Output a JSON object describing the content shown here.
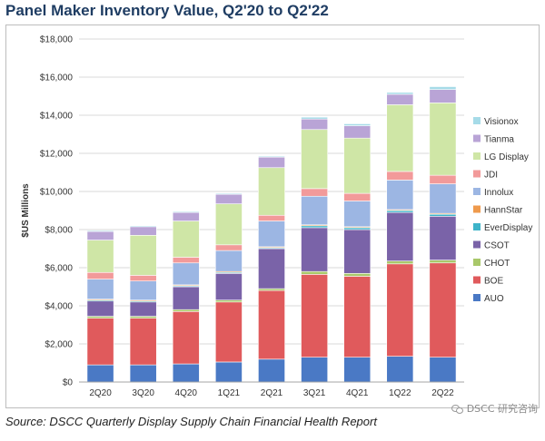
{
  "page": {
    "title": "Panel Maker Inventory Value, Q2'20 to Q2'22",
    "source": "Source: DSCC Quarterly Display Supply Chain Financial Health Report",
    "watermark": "DSCC 研究咨询",
    "watermark_icon": "wechat-icon"
  },
  "chart_data": {
    "type": "bar",
    "stacked": true,
    "title": "",
    "xlabel": "",
    "ylabel": "$US Millions",
    "ylim": [
      0,
      18000
    ],
    "yticks": [
      0,
      2000,
      4000,
      6000,
      8000,
      10000,
      12000,
      14000,
      16000,
      18000
    ],
    "ytick_labels": [
      "$0",
      "$2,000",
      "$4,000",
      "$6,000",
      "$8,000",
      "$10,000",
      "$12,000",
      "$14,000",
      "$16,000",
      "$18,000"
    ],
    "grid": true,
    "legend_position": "right",
    "categories": [
      "2Q20",
      "3Q20",
      "4Q20",
      "1Q21",
      "2Q21",
      "3Q21",
      "4Q21",
      "1Q22",
      "2Q22"
    ],
    "series": [
      {
        "name": "AUO",
        "color": "#4a79c5",
        "values": [
          900,
          900,
          950,
          1050,
          1200,
          1300,
          1300,
          1350,
          1300
        ]
      },
      {
        "name": "BOE",
        "color": "#e05a5c",
        "values": [
          2450,
          2450,
          2750,
          3150,
          3600,
          4350,
          4250,
          4850,
          4950
        ]
      },
      {
        "name": "CHOT",
        "color": "#a9c86a",
        "values": [
          100,
          100,
          100,
          100,
          100,
          150,
          150,
          150,
          150
        ]
      },
      {
        "name": "CSOT",
        "color": "#7a63a8",
        "values": [
          800,
          750,
          1200,
          1400,
          2100,
          2300,
          2300,
          2550,
          2300
        ]
      },
      {
        "name": "EverDisplay",
        "color": "#3eb4c9",
        "values": [
          50,
          50,
          50,
          50,
          50,
          100,
          100,
          100,
          100
        ]
      },
      {
        "name": "HannStar",
        "color": "#ef9a4c",
        "values": [
          50,
          50,
          50,
          50,
          50,
          50,
          50,
          50,
          50
        ]
      },
      {
        "name": "Innolux",
        "color": "#9cb6e3",
        "values": [
          1050,
          1000,
          1150,
          1100,
          1350,
          1500,
          1350,
          1550,
          1550
        ]
      },
      {
        "name": "JDI",
        "color": "#f29a9a",
        "values": [
          350,
          300,
          300,
          300,
          300,
          400,
          400,
          450,
          450
        ]
      },
      {
        "name": "LG Display",
        "color": "#cfe6a6",
        "values": [
          1700,
          2100,
          1900,
          2150,
          2500,
          3100,
          2900,
          3500,
          3800
        ]
      },
      {
        "name": "Tianma",
        "color": "#b9a4d6",
        "values": [
          450,
          450,
          450,
          500,
          550,
          550,
          650,
          550,
          700
        ]
      },
      {
        "name": "Visionox",
        "color": "#a6dbe8",
        "values": [
          50,
          50,
          50,
          50,
          50,
          100,
          100,
          100,
          150
        ]
      }
    ]
  }
}
